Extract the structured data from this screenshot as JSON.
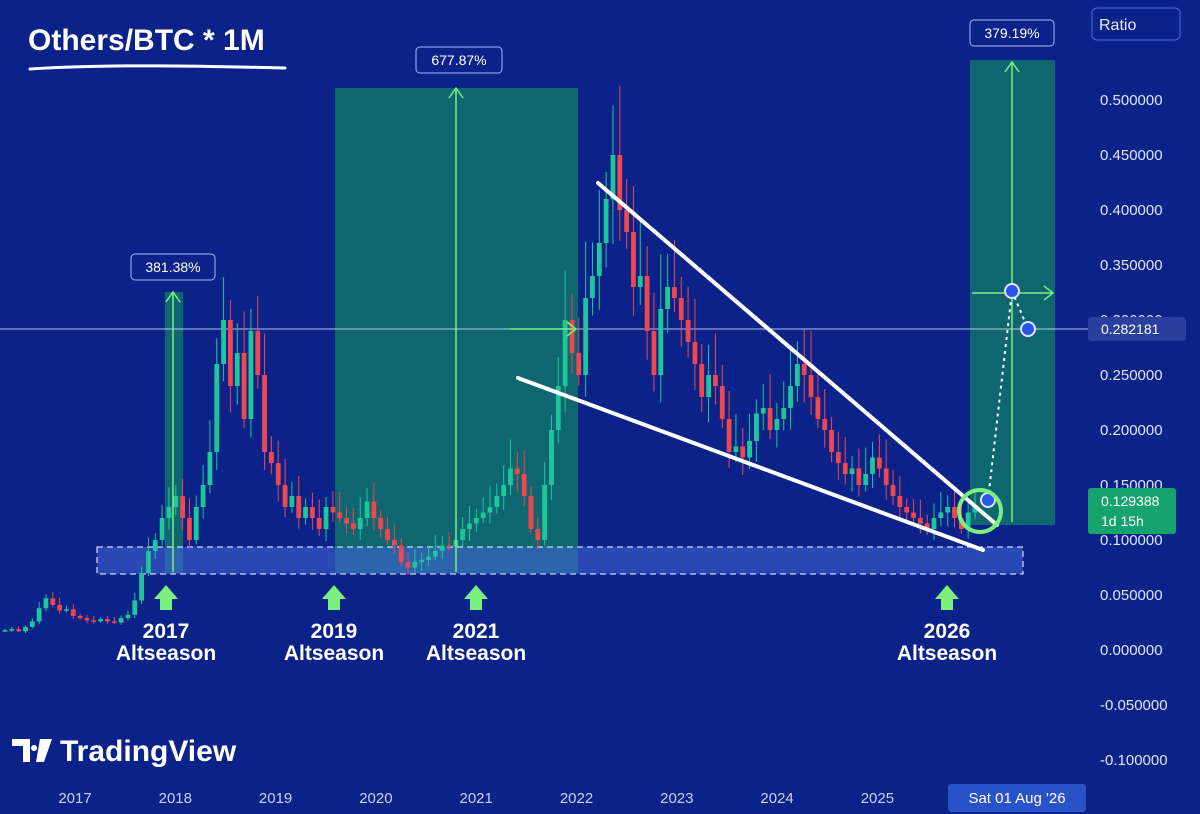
{
  "header": {
    "title": "Others/BTC * 1M",
    "scale_mode": "Ratio"
  },
  "brand": {
    "name": "TradingView"
  },
  "colors": {
    "background": "#0b2288",
    "up": "#1ec79a",
    "down": "#f0474f",
    "highlight_zone": "#0f6f6c",
    "support_zone": "#3f61d6",
    "arrow": "#7cf07f",
    "price_badge": "#16a36d"
  },
  "crosshair": {
    "price_label": "0.282181",
    "date_label": "Sat 01 Aug '26"
  },
  "last_price": {
    "value": "0.129388",
    "countdown": "1d 15h"
  },
  "measurements": [
    {
      "label": "381.38%"
    },
    {
      "label": "677.87%"
    },
    {
      "label": "379.19%"
    }
  ],
  "annotations": [
    {
      "year": "2017",
      "text": "Altseason"
    },
    {
      "year": "2019",
      "text": "Altseason"
    },
    {
      "year": "2021",
      "text": "Altseason"
    },
    {
      "year": "2026",
      "text": "Altseason"
    }
  ],
  "chart_data": {
    "type": "candlestick",
    "title": "Others/BTC * 1M",
    "x_axis": {
      "tick_labels": [
        "2017",
        "2018",
        "2019",
        "2020",
        "2021",
        "2022",
        "2023",
        "2024",
        "2025"
      ]
    },
    "y_axis": {
      "scale": "ratio",
      "range": [
        -0.1,
        0.52
      ],
      "tick_labels": [
        "0.500000",
        "0.450000",
        "0.400000",
        "0.350000",
        "0.300000",
        "0.250000",
        "0.200000",
        "0.150000",
        "0.100000",
        "0.050000",
        "0.000000",
        "-0.050000",
        "-0.100000"
      ]
    },
    "candles_close": [
      0.018,
      0.019,
      0.017,
      0.021,
      0.026,
      0.038,
      0.047,
      0.041,
      0.036,
      0.037,
      0.031,
      0.029,
      0.027,
      0.026,
      0.028,
      0.026,
      0.025,
      0.029,
      0.032,
      0.045,
      0.07,
      0.09,
      0.1,
      0.12,
      0.13,
      0.14,
      0.12,
      0.1,
      0.13,
      0.15,
      0.18,
      0.26,
      0.3,
      0.24,
      0.27,
      0.21,
      0.29,
      0.25,
      0.18,
      0.17,
      0.15,
      0.13,
      0.14,
      0.12,
      0.13,
      0.12,
      0.11,
      0.13,
      0.125,
      0.12,
      0.115,
      0.11,
      0.12,
      0.135,
      0.12,
      0.11,
      0.1,
      0.095,
      0.08,
      0.075,
      0.08,
      0.082,
      0.085,
      0.09,
      0.095,
      0.094,
      0.1,
      0.11,
      0.115,
      0.12,
      0.125,
      0.13,
      0.14,
      0.15,
      0.165,
      0.16,
      0.14,
      0.11,
      0.1,
      0.15,
      0.2,
      0.24,
      0.3,
      0.27,
      0.25,
      0.32,
      0.34,
      0.37,
      0.41,
      0.45,
      0.4,
      0.38,
      0.33,
      0.34,
      0.29,
      0.25,
      0.31,
      0.33,
      0.32,
      0.3,
      0.28,
      0.26,
      0.23,
      0.25,
      0.24,
      0.21,
      0.18,
      0.185,
      0.175,
      0.19,
      0.215,
      0.22,
      0.2,
      0.21,
      0.22,
      0.24,
      0.26,
      0.25,
      0.23,
      0.21,
      0.2,
      0.18,
      0.17,
      0.16,
      0.165,
      0.15,
      0.16,
      0.175,
      0.165,
      0.15,
      0.14,
      0.13,
      0.125,
      0.12,
      0.115,
      0.11,
      0.12,
      0.125,
      0.13,
      0.12,
      0.11,
      0.125,
      0.129
    ],
    "support_zone": [
      0.072,
      0.09
    ],
    "falling_wedge": {
      "upper": [
        {
          "x": "2022-03",
          "y": 0.415
        },
        {
          "x": "2026-05",
          "y": 0.108
        }
      ],
      "lower": [
        {
          "x": "2021-06",
          "y": 0.237
        },
        {
          "x": "2026-05",
          "y": 0.085
        }
      ]
    },
    "measures": [
      {
        "label": "381.38%",
        "from": 0.07,
        "to": 0.32
      },
      {
        "label": "677.87%",
        "from": 0.067,
        "to": 0.49
      },
      {
        "label": "379.19%",
        "from": 0.108,
        "to": 0.515
      }
    ],
    "horizontal_line": 0.282181,
    "projection_target": 0.3,
    "annotations": [
      "2017 Altseason",
      "2019 Altseason",
      "2021 Altseason",
      "2026 Altseason"
    ]
  }
}
